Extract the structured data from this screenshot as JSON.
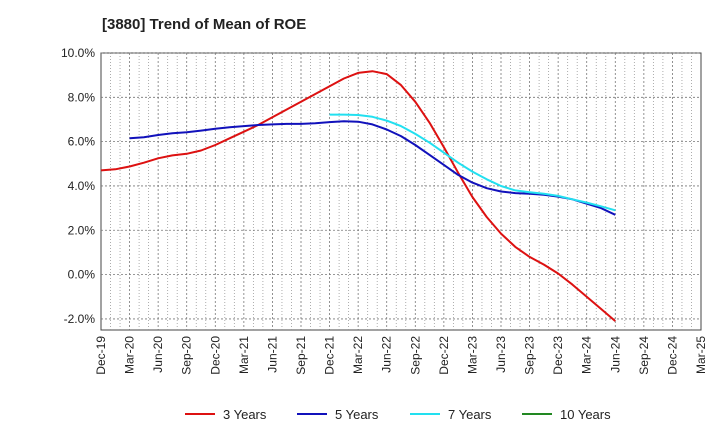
{
  "chart_data": {
    "type": "line",
    "title": "[3880]  Trend of Mean of ROE",
    "xlabel": "",
    "ylabel": "",
    "x_ticks": [
      "Dec-19",
      "Mar-20",
      "Jun-20",
      "Sep-20",
      "Dec-20",
      "Mar-21",
      "Jun-21",
      "Sep-21",
      "Dec-21",
      "Mar-22",
      "Jun-22",
      "Sep-22",
      "Dec-22",
      "Mar-23",
      "Jun-23",
      "Sep-23",
      "Dec-23",
      "Mar-24",
      "Jun-24",
      "Sep-24",
      "Dec-24",
      "Mar-25"
    ],
    "y_ticks": [
      "10.0%",
      "8.0%",
      "6.0%",
      "4.0%",
      "2.0%",
      "0.0%",
      "-2.0%"
    ],
    "y_tick_values": [
      10,
      8,
      6,
      4,
      2,
      0,
      -2
    ],
    "ylim": [
      -2.5,
      10
    ],
    "grid": true,
    "legend_position": "bottom",
    "series": [
      {
        "name": "3 Years",
        "color": "#dd1111",
        "points": [
          [
            0,
            4.7
          ],
          [
            0.5,
            4.75
          ],
          [
            1,
            4.88
          ],
          [
            1.5,
            5.05
          ],
          [
            2,
            5.25
          ],
          [
            2.5,
            5.38
          ],
          [
            3,
            5.45
          ],
          [
            3.5,
            5.6
          ],
          [
            4,
            5.85
          ],
          [
            4.5,
            6.15
          ],
          [
            5,
            6.45
          ],
          [
            5.5,
            6.75
          ],
          [
            6,
            7.1
          ],
          [
            6.5,
            7.45
          ],
          [
            7,
            7.8
          ],
          [
            7.5,
            8.15
          ],
          [
            8,
            8.5
          ],
          [
            8.5,
            8.85
          ],
          [
            9,
            9.1
          ],
          [
            9.5,
            9.18
          ],
          [
            10,
            9.05
          ],
          [
            10.5,
            8.55
          ],
          [
            11,
            7.8
          ],
          [
            11.5,
            6.85
          ],
          [
            12,
            5.75
          ],
          [
            12.5,
            4.6
          ],
          [
            13,
            3.5
          ],
          [
            13.5,
            2.6
          ],
          [
            14,
            1.85
          ],
          [
            14.5,
            1.25
          ],
          [
            15,
            0.8
          ],
          [
            15.5,
            0.45
          ],
          [
            16,
            0.05
          ],
          [
            16.5,
            -0.45
          ],
          [
            17,
            -1.0
          ],
          [
            17.5,
            -1.55
          ],
          [
            18,
            -2.1
          ]
        ]
      },
      {
        "name": "5 Years",
        "color": "#1111bb",
        "points": [
          [
            1,
            6.15
          ],
          [
            1.5,
            6.2
          ],
          [
            2,
            6.3
          ],
          [
            2.5,
            6.38
          ],
          [
            3,
            6.42
          ],
          [
            3.5,
            6.5
          ],
          [
            4,
            6.58
          ],
          [
            4.5,
            6.65
          ],
          [
            5,
            6.7
          ],
          [
            5.5,
            6.75
          ],
          [
            6,
            6.78
          ],
          [
            6.5,
            6.8
          ],
          [
            7,
            6.8
          ],
          [
            7.5,
            6.83
          ],
          [
            8,
            6.88
          ],
          [
            8.5,
            6.92
          ],
          [
            9,
            6.9
          ],
          [
            9.5,
            6.78
          ],
          [
            10,
            6.55
          ],
          [
            10.5,
            6.25
          ],
          [
            11,
            5.85
          ],
          [
            11.5,
            5.4
          ],
          [
            12,
            4.95
          ],
          [
            12.5,
            4.5
          ],
          [
            13,
            4.15
          ],
          [
            13.5,
            3.9
          ],
          [
            14,
            3.75
          ],
          [
            14.5,
            3.68
          ],
          [
            15,
            3.65
          ],
          [
            15.5,
            3.6
          ],
          [
            16,
            3.52
          ],
          [
            16.5,
            3.4
          ],
          [
            17,
            3.2
          ],
          [
            17.5,
            3.0
          ],
          [
            18,
            2.7
          ]
        ]
      },
      {
        "name": "7 Years",
        "color": "#22e0f0",
        "points": [
          [
            8,
            7.22
          ],
          [
            8.5,
            7.22
          ],
          [
            9,
            7.2
          ],
          [
            9.5,
            7.12
          ],
          [
            10,
            6.95
          ],
          [
            10.5,
            6.7
          ],
          [
            11,
            6.35
          ],
          [
            11.5,
            5.95
          ],
          [
            12,
            5.5
          ],
          [
            12.5,
            5.05
          ],
          [
            13,
            4.65
          ],
          [
            13.5,
            4.3
          ],
          [
            14,
            4.0
          ],
          [
            14.5,
            3.8
          ],
          [
            15,
            3.72
          ],
          [
            15.5,
            3.65
          ],
          [
            16,
            3.55
          ],
          [
            16.5,
            3.4
          ],
          [
            17,
            3.25
          ],
          [
            17.5,
            3.08
          ],
          [
            18,
            2.9
          ]
        ]
      },
      {
        "name": "10 Years",
        "color": "#228822",
        "points": []
      }
    ]
  }
}
